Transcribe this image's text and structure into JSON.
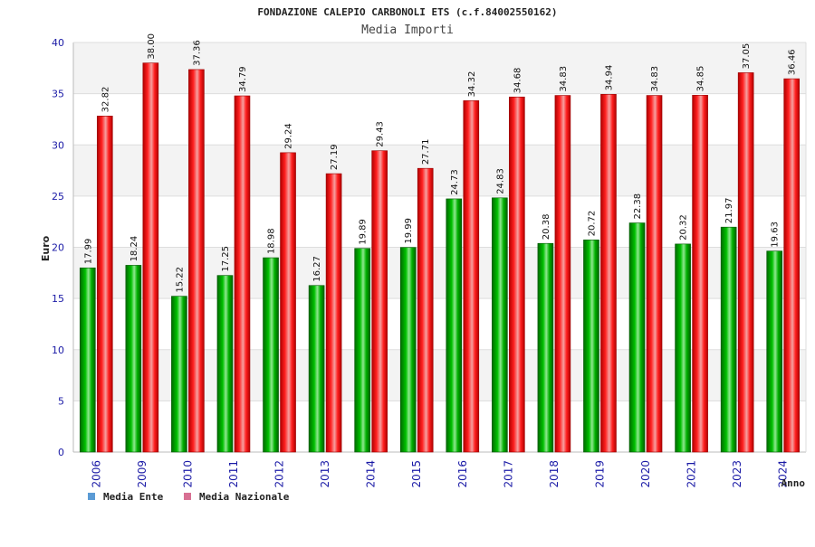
{
  "chart_data": {
    "type": "bar",
    "title": "FONDAZIONE CALEPIO CARBONOLI ETS (c.f.84002550162)",
    "subtitle": "Media Importi",
    "xlabel": "Anno",
    "ylabel": "Euro",
    "ylim": [
      0,
      40
    ],
    "yticks": [
      0,
      5,
      10,
      15,
      20,
      25,
      30,
      35,
      40
    ],
    "grid": true,
    "legend_position": "bottom-left",
    "categories": [
      "2006",
      "2009",
      "2010",
      "2011",
      "2012",
      "2013",
      "2014",
      "2015",
      "2016",
      "2017",
      "2018",
      "2019",
      "2020",
      "2021",
      "2023",
      "2024"
    ],
    "series": [
      {
        "name": "Media Ente",
        "color": "#00aa00",
        "legend_color": "#5b9bd5",
        "values": [
          17.99,
          18.24,
          15.22,
          17.25,
          18.98,
          16.27,
          19.89,
          19.99,
          24.73,
          24.83,
          20.38,
          20.72,
          22.38,
          20.32,
          21.97,
          19.63
        ],
        "labels": [
          "17.99",
          "18.24",
          "15.22",
          "17.25",
          "18.98",
          "16.27",
          "19.89",
          "19.99",
          "24.73",
          "24.83",
          "20.38",
          "20.72",
          "22.38",
          "20.32",
          "21.97",
          "19.63"
        ]
      },
      {
        "name": "Media Nazionale",
        "color": "#ee1111",
        "legend_color": "#d87093",
        "values": [
          32.82,
          38.0,
          37.36,
          34.79,
          29.24,
          27.19,
          29.43,
          27.71,
          34.32,
          34.68,
          34.83,
          34.94,
          34.83,
          34.85,
          37.05,
          36.46
        ],
        "labels": [
          "32.82",
          "38.00",
          "37.36",
          "34.79",
          "29.24",
          "27.19",
          "29.43",
          "27.71",
          "34.32",
          "34.68",
          "34.83",
          "34.94",
          "34.83",
          "34.85",
          "37.05",
          "36.46"
        ]
      }
    ]
  }
}
